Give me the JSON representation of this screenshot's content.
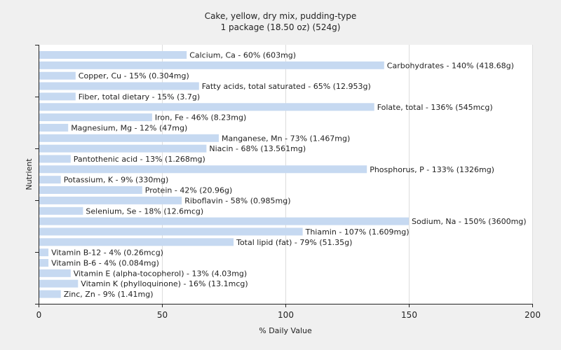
{
  "chart_data": {
    "type": "bar",
    "orientation": "horizontal",
    "title": "Cake, yellow, dry mix, pudding-type",
    "subtitle": "1 package (18.50 oz) (524g)",
    "xlabel": "% Daily Value",
    "ylabel": "Nutrient",
    "xlim": [
      0,
      200
    ],
    "xticks": [
      0,
      50,
      100,
      150,
      200
    ],
    "grid": true,
    "bar_color": "#c6d9f1",
    "categories": [
      "Calcium, Ca",
      "Carbohydrates",
      "Copper, Cu",
      "Fatty acids, total saturated",
      "Fiber, total dietary",
      "Folate, total",
      "Iron, Fe",
      "Magnesium, Mg",
      "Manganese, Mn",
      "Niacin",
      "Pantothenic acid",
      "Phosphorus, P",
      "Potassium, K",
      "Protein",
      "Riboflavin",
      "Selenium, Se",
      "Sodium, Na",
      "Thiamin",
      "Total lipid (fat)",
      "Vitamin B-12",
      "Vitamin B-6",
      "Vitamin E (alpha-tocopherol)",
      "Vitamin K (phylloquinone)",
      "Zinc, Zn"
    ],
    "values": [
      60,
      140,
      15,
      65,
      15,
      136,
      46,
      12,
      73,
      68,
      13,
      133,
      9,
      42,
      58,
      18,
      150,
      107,
      79,
      4,
      4,
      13,
      16,
      9
    ],
    "labels": [
      "Calcium, Ca - 60% (603mg)",
      "Carbohydrates - 140% (418.68g)",
      "Copper, Cu - 15% (0.304mg)",
      "Fatty acids, total saturated - 65% (12.953g)",
      "Fiber, total dietary - 15% (3.7g)",
      "Folate, total - 136% (545mcg)",
      "Iron, Fe - 46% (8.23mg)",
      "Magnesium, Mg - 12% (47mg)",
      "Manganese, Mn - 73% (1.467mg)",
      "Niacin - 68% (13.561mg)",
      "Pantothenic acid - 13% (1.268mg)",
      "Phosphorus, P - 133% (1326mg)",
      "Potassium, K - 9% (330mg)",
      "Protein - 42% (20.96g)",
      "Riboflavin - 58% (0.985mg)",
      "Selenium, Se - 18% (12.6mcg)",
      "Sodium, Na - 150% (3600mg)",
      "Thiamin - 107% (1.609mg)",
      "Total lipid (fat) - 79% (51.35g)",
      "Vitamin B-12 - 4% (0.26mcg)",
      "Vitamin B-6 - 4% (0.084mg)",
      "Vitamin E (alpha-tocopherol) - 13% (4.03mg)",
      "Vitamin K (phylloquinone) - 16% (13.1mcg)",
      "Zinc, Zn - 9% (1.41mg)"
    ]
  }
}
